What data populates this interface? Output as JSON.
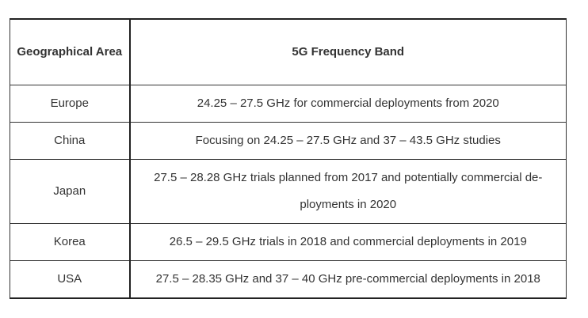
{
  "table": {
    "headers": {
      "area": "Geographical Area",
      "band": "5G Frequency Band"
    },
    "rows": [
      {
        "area": "Europe",
        "band": "24.25 – 27.5 GHz for commercial deployments from 2020"
      },
      {
        "area": "China",
        "band": "Focusing on 24.25 – 27.5 GHz and 37 – 43.5 GHz studies"
      },
      {
        "area": "Japan",
        "band": "27.5 – 28.28 GHz trials planned from 2017 and potentially commercial de-ployments in 2020"
      },
      {
        "area": "Korea",
        "band": "26.5 – 29.5 GHz trials in 2018 and commercial deployments in 2019"
      },
      {
        "area": "USA",
        "band": "27.5 – 28.35 GHz and 37 – 40 GHz pre-commercial deployments in 2018"
      }
    ]
  }
}
